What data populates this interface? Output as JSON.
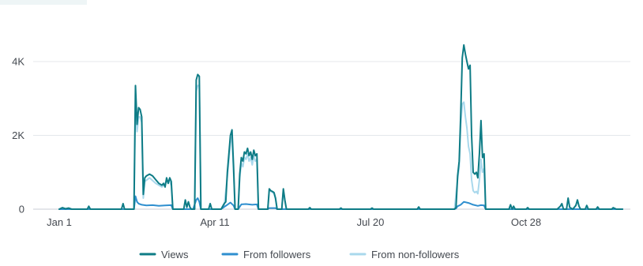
{
  "chart_data": {
    "type": "line",
    "title": "",
    "xlabel": "",
    "ylabel": "",
    "ylim": [
      0,
      4400
    ],
    "grid": true,
    "legend_position": "bottom-center",
    "x_ticks": [
      {
        "label": "Jan 1",
        "day": 0
      },
      {
        "label": "Apr 11",
        "day": 100
      },
      {
        "label": "Jul 20",
        "day": 200
      },
      {
        "label": "Oct 28",
        "day": 300
      }
    ],
    "y_ticks": [
      {
        "label": "0",
        "value": 0
      },
      {
        "label": "2K",
        "value": 2000
      },
      {
        "label": "4K",
        "value": 4000
      }
    ],
    "x_domain": [
      0,
      362
    ],
    "series": [
      {
        "name": "Views",
        "color": "#0e7c86",
        "points": [
          [
            0,
            0
          ],
          [
            2,
            40
          ],
          [
            4,
            10
          ],
          [
            6,
            30
          ],
          [
            8,
            0
          ],
          [
            12,
            0
          ],
          [
            18,
            0
          ],
          [
            19,
            80
          ],
          [
            20,
            0
          ],
          [
            40,
            0
          ],
          [
            41,
            150
          ],
          [
            42,
            0
          ],
          [
            48,
            0
          ],
          [
            49,
            3350
          ],
          [
            50,
            2300
          ],
          [
            51,
            2750
          ],
          [
            52,
            2700
          ],
          [
            53,
            2500
          ],
          [
            54,
            400
          ],
          [
            55,
            850
          ],
          [
            56,
            900
          ],
          [
            58,
            950
          ],
          [
            60,
            900
          ],
          [
            62,
            800
          ],
          [
            64,
            700
          ],
          [
            66,
            650
          ],
          [
            67,
            700
          ],
          [
            68,
            600
          ],
          [
            69,
            850
          ],
          [
            70,
            700
          ],
          [
            71,
            850
          ],
          [
            72,
            750
          ],
          [
            73,
            0
          ],
          [
            80,
            0
          ],
          [
            81,
            250
          ],
          [
            82,
            50
          ],
          [
            83,
            200
          ],
          [
            84,
            50
          ],
          [
            85,
            0
          ],
          [
            87,
            0
          ],
          [
            88,
            3500
          ],
          [
            89,
            3650
          ],
          [
            90,
            3600
          ],
          [
            91,
            0
          ],
          [
            96,
            0
          ],
          [
            97,
            150
          ],
          [
            98,
            0
          ],
          [
            104,
            0
          ],
          [
            106,
            150
          ],
          [
            107,
            200
          ],
          [
            108,
            1000
          ],
          [
            110,
            2000
          ],
          [
            111,
            2150
          ],
          [
            112,
            1200
          ],
          [
            113,
            0
          ],
          [
            115,
            0
          ],
          [
            116,
            950
          ],
          [
            117,
            1400
          ],
          [
            118,
            1300
          ],
          [
            119,
            1550
          ],
          [
            120,
            1500
          ],
          [
            121,
            1650
          ],
          [
            122,
            1450
          ],
          [
            123,
            1550
          ],
          [
            124,
            1350
          ],
          [
            125,
            1600
          ],
          [
            126,
            1450
          ],
          [
            127,
            1500
          ],
          [
            128,
            0
          ],
          [
            134,
            0
          ],
          [
            135,
            550
          ],
          [
            136,
            500
          ],
          [
            137,
            480
          ],
          [
            138,
            450
          ],
          [
            139,
            300
          ],
          [
            140,
            0
          ],
          [
            143,
            0
          ],
          [
            144,
            550
          ],
          [
            145,
            250
          ],
          [
            146,
            0
          ],
          [
            160,
            0
          ],
          [
            161,
            40
          ],
          [
            162,
            0
          ],
          [
            180,
            0
          ],
          [
            181,
            30
          ],
          [
            182,
            0
          ],
          [
            200,
            0
          ],
          [
            201,
            30
          ],
          [
            202,
            0
          ],
          [
            230,
            0
          ],
          [
            231,
            60
          ],
          [
            232,
            0
          ],
          [
            254,
            0
          ],
          [
            255,
            50
          ],
          [
            256,
            900
          ],
          [
            257,
            1300
          ],
          [
            258,
            2600
          ],
          [
            259,
            4100
          ],
          [
            260,
            4450
          ],
          [
            261,
            4200
          ],
          [
            262,
            4000
          ],
          [
            263,
            3800
          ],
          [
            264,
            3900
          ],
          [
            265,
            2000
          ],
          [
            266,
            1000
          ],
          [
            267,
            950
          ],
          [
            268,
            1000
          ],
          [
            269,
            850
          ],
          [
            270,
            1500
          ],
          [
            271,
            2400
          ],
          [
            272,
            1400
          ],
          [
            273,
            1500
          ],
          [
            274,
            0
          ],
          [
            280,
            0
          ],
          [
            289,
            0
          ],
          [
            290,
            120
          ],
          [
            291,
            0
          ],
          [
            292,
            80
          ],
          [
            293,
            0
          ],
          [
            300,
            0
          ],
          [
            301,
            40
          ],
          [
            302,
            0
          ],
          [
            320,
            0
          ],
          [
            322,
            80
          ],
          [
            323,
            150
          ],
          [
            324,
            0
          ],
          [
            326,
            0
          ],
          [
            327,
            300
          ],
          [
            328,
            50
          ],
          [
            330,
            0
          ],
          [
            332,
            100
          ],
          [
            333,
            250
          ],
          [
            334,
            80
          ],
          [
            335,
            0
          ],
          [
            338,
            0
          ],
          [
            339,
            100
          ],
          [
            340,
            0
          ],
          [
            345,
            0
          ],
          [
            346,
            60
          ],
          [
            347,
            0
          ],
          [
            355,
            0
          ],
          [
            356,
            40
          ],
          [
            358,
            0
          ],
          [
            362,
            0
          ]
        ]
      },
      {
        "name": "From followers",
        "color": "#2f8fcf",
        "points": [
          [
            0,
            0
          ],
          [
            48,
            0
          ],
          [
            49,
            350
          ],
          [
            50,
            200
          ],
          [
            51,
            150
          ],
          [
            53,
            120
          ],
          [
            56,
            100
          ],
          [
            60,
            110
          ],
          [
            64,
            90
          ],
          [
            68,
            100
          ],
          [
            72,
            110
          ],
          [
            73,
            0
          ],
          [
            86,
            0
          ],
          [
            88,
            250
          ],
          [
            89,
            300
          ],
          [
            90,
            200
          ],
          [
            91,
            0
          ],
          [
            104,
            0
          ],
          [
            106,
            60
          ],
          [
            108,
            120
          ],
          [
            110,
            180
          ],
          [
            112,
            100
          ],
          [
            113,
            0
          ],
          [
            115,
            0
          ],
          [
            117,
            130
          ],
          [
            120,
            140
          ],
          [
            124,
            120
          ],
          [
            127,
            130
          ],
          [
            128,
            0
          ],
          [
            134,
            0
          ],
          [
            135,
            30
          ],
          [
            139,
            30
          ],
          [
            140,
            0
          ],
          [
            254,
            0
          ],
          [
            255,
            20
          ],
          [
            256,
            80
          ],
          [
            258,
            120
          ],
          [
            260,
            200
          ],
          [
            263,
            170
          ],
          [
            266,
            120
          ],
          [
            269,
            90
          ],
          [
            271,
            110
          ],
          [
            273,
            100
          ],
          [
            274,
            0
          ],
          [
            362,
            0
          ]
        ]
      },
      {
        "name": "From non-followers",
        "color": "#a9d8ec",
        "points": [
          [
            0,
            0
          ],
          [
            48,
            0
          ],
          [
            49,
            2900
          ],
          [
            50,
            2100
          ],
          [
            51,
            2500
          ],
          [
            52,
            2500
          ],
          [
            53,
            2350
          ],
          [
            54,
            300
          ],
          [
            55,
            750
          ],
          [
            58,
            850
          ],
          [
            62,
            700
          ],
          [
            66,
            600
          ],
          [
            69,
            750
          ],
          [
            71,
            750
          ],
          [
            72,
            640
          ],
          [
            73,
            0
          ],
          [
            87,
            0
          ],
          [
            88,
            3200
          ],
          [
            89,
            3350
          ],
          [
            90,
            3350
          ],
          [
            91,
            0
          ],
          [
            104,
            0
          ],
          [
            106,
            90
          ],
          [
            108,
            880
          ],
          [
            110,
            1800
          ],
          [
            111,
            1950
          ],
          [
            112,
            1050
          ],
          [
            113,
            0
          ],
          [
            115,
            0
          ],
          [
            116,
            850
          ],
          [
            117,
            1250
          ],
          [
            118,
            1150
          ],
          [
            119,
            1400
          ],
          [
            120,
            1350
          ],
          [
            121,
            1500
          ],
          [
            122,
            1300
          ],
          [
            123,
            1400
          ],
          [
            124,
            1200
          ],
          [
            125,
            1450
          ],
          [
            126,
            1300
          ],
          [
            127,
            1350
          ],
          [
            128,
            0
          ],
          [
            134,
            0
          ],
          [
            135,
            520
          ],
          [
            138,
            420
          ],
          [
            139,
            270
          ],
          [
            140,
            0
          ],
          [
            143,
            0
          ],
          [
            144,
            520
          ],
          [
            145,
            220
          ],
          [
            146,
            0
          ],
          [
            254,
            0
          ],
          [
            256,
            820
          ],
          [
            257,
            1150
          ],
          [
            258,
            2300
          ],
          [
            259,
            2850
          ],
          [
            260,
            2900
          ],
          [
            261,
            2500
          ],
          [
            262,
            2200
          ],
          [
            263,
            1700
          ],
          [
            264,
            1500
          ],
          [
            265,
            800
          ],
          [
            266,
            500
          ],
          [
            267,
            450
          ],
          [
            268,
            480
          ],
          [
            269,
            420
          ],
          [
            270,
            800
          ],
          [
            271,
            1350
          ],
          [
            272,
            1000
          ],
          [
            273,
            1100
          ],
          [
            274,
            0
          ],
          [
            362,
            0
          ]
        ]
      }
    ]
  }
}
